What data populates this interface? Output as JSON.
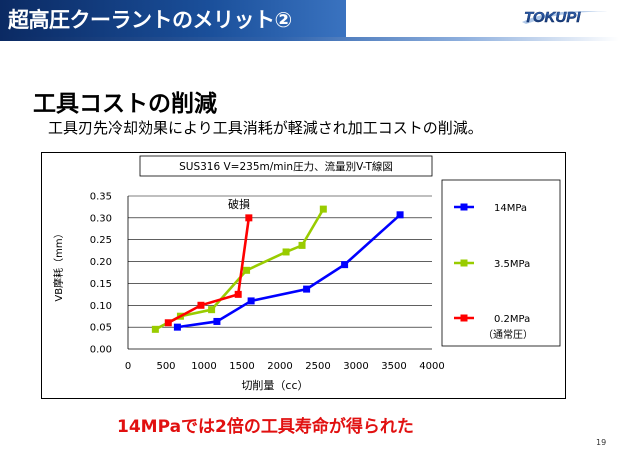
{
  "header": {
    "title": "超高圧クーラントのメリット②",
    "logo_text": "TOKUPI"
  },
  "section": {
    "heading": "工具コストの削減",
    "description": "工具刃先冷却効果により工具消耗が軽減され加工コストの削減。"
  },
  "conclusion": "14MPaでは2倍の工具寿命が得られた",
  "page_number": "19",
  "colors": {
    "title_bar": "#0b2a63",
    "series_14mpa": "#0000ff",
    "series_35mpa": "#99cc00",
    "series_02mpa": "#ff0000",
    "conclusion_text": "#e11010"
  },
  "chart_data": {
    "type": "line",
    "title": "SUS316 V=235m/min圧力、流量別V-T線図",
    "xlabel": "切削量（cc）",
    "ylabel": "VB摩耗（mm）",
    "xlim": [
      0,
      4000
    ],
    "ylim": [
      0,
      0.35
    ],
    "x_ticks": [
      "0",
      "500",
      "1000",
      "1500",
      "2000",
      "2500",
      "3000",
      "3500",
      "4000"
    ],
    "y_ticks": [
      "0.00",
      "0.05",
      "0.10",
      "0.15",
      "0.20",
      "0.25",
      "0.30",
      "0.35"
    ],
    "grid": "horizontal",
    "legend_position": "right",
    "annotation": "破損",
    "series": [
      {
        "name": "14MPa",
        "color": "#0000ff",
        "marker": "square",
        "points": [
          [
            650,
            0.05
          ],
          [
            1170,
            0.063
          ],
          [
            1620,
            0.11
          ],
          [
            2350,
            0.137
          ],
          [
            2850,
            0.193
          ],
          [
            3580,
            0.307
          ]
        ]
      },
      {
        "name": "3.5MPa",
        "color": "#99cc00",
        "marker": "square",
        "points": [
          [
            360,
            0.045
          ],
          [
            690,
            0.075
          ],
          [
            1100,
            0.09
          ],
          [
            1560,
            0.18
          ],
          [
            2080,
            0.222
          ],
          [
            2290,
            0.237
          ],
          [
            2570,
            0.32
          ]
        ]
      },
      {
        "name": "0.2MPa",
        "name_note": "（通常圧）",
        "color": "#ff0000",
        "marker": "square",
        "points": [
          [
            530,
            0.06
          ],
          [
            960,
            0.1
          ],
          [
            1450,
            0.125
          ],
          [
            1590,
            0.3
          ]
        ]
      }
    ]
  }
}
